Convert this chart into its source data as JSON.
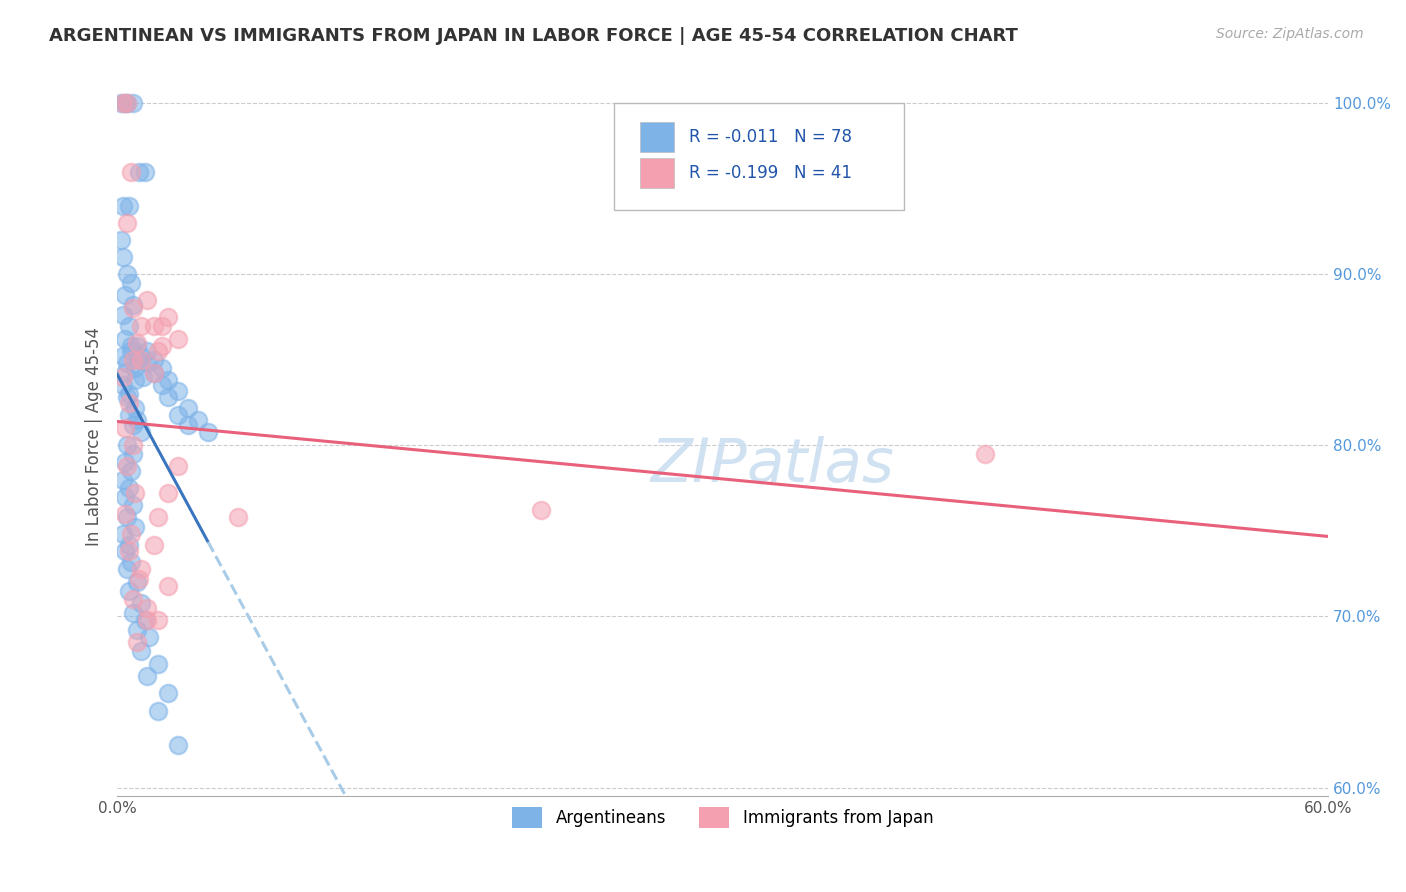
{
  "title": "ARGENTINEAN VS IMMIGRANTS FROM JAPAN IN LABOR FORCE | AGE 45-54 CORRELATION CHART",
  "source_text": "Source: ZipAtlas.com",
  "ylabel": "In Labor Force | Age 45-54",
  "xlim": [
    0.0,
    0.6
  ],
  "ylim": [
    0.595,
    1.015
  ],
  "ytick_positions": [
    0.6,
    0.7,
    0.8,
    0.9,
    1.0
  ],
  "ytick_labels": [
    "60.0%",
    "70.0%",
    "80.0%",
    "90.0%",
    "100.0%"
  ],
  "blue_scatter_color": "#7EB3E8",
  "pink_scatter_color": "#F4A0B0",
  "blue_line_color": "#3A75BF",
  "pink_line_color": "#E8607A",
  "blue_line_dash_color": "#A8CCE8",
  "watermark_color": "#C8DCF0",
  "background_color": "#FFFFFF",
  "grid_color": "#CCCCCC",
  "legend_text_color": "#2255AA",
  "ytick_color": "#5599DD",
  "arg_x": [
    0.002,
    0.004,
    0.005,
    0.008,
    0.011,
    0.014,
    0.003,
    0.006,
    0.002,
    0.003,
    0.005,
    0.007,
    0.004,
    0.008,
    0.003,
    0.006,
    0.004,
    0.007,
    0.003,
    0.005,
    0.004,
    0.009,
    0.003,
    0.006,
    0.005,
    0.009,
    0.006,
    0.01,
    0.008,
    0.012,
    0.007,
    0.011,
    0.009,
    0.013,
    0.01,
    0.015,
    0.012,
    0.018,
    0.015,
    0.022,
    0.018,
    0.025,
    0.022,
    0.03,
    0.025,
    0.035,
    0.03,
    0.04,
    0.035,
    0.045,
    0.005,
    0.008,
    0.004,
    0.007,
    0.003,
    0.006,
    0.004,
    0.008,
    0.005,
    0.009,
    0.003,
    0.006,
    0.004,
    0.007,
    0.005,
    0.01,
    0.006,
    0.012,
    0.008,
    0.014,
    0.01,
    0.016,
    0.012,
    0.02,
    0.015,
    0.025,
    0.02,
    0.03
  ],
  "arg_y": [
    1.0,
    1.0,
    1.0,
    1.0,
    0.96,
    0.96,
    0.94,
    0.94,
    0.92,
    0.91,
    0.9,
    0.895,
    0.888,
    0.882,
    0.876,
    0.87,
    0.862,
    0.858,
    0.852,
    0.848,
    0.842,
    0.838,
    0.835,
    0.83,
    0.828,
    0.822,
    0.818,
    0.815,
    0.812,
    0.808,
    0.855,
    0.85,
    0.845,
    0.84,
    0.858,
    0.855,
    0.852,
    0.85,
    0.848,
    0.845,
    0.842,
    0.838,
    0.835,
    0.832,
    0.828,
    0.822,
    0.818,
    0.815,
    0.812,
    0.808,
    0.8,
    0.795,
    0.79,
    0.785,
    0.78,
    0.775,
    0.77,
    0.765,
    0.758,
    0.752,
    0.748,
    0.742,
    0.738,
    0.732,
    0.728,
    0.72,
    0.715,
    0.708,
    0.702,
    0.698,
    0.692,
    0.688,
    0.68,
    0.672,
    0.665,
    0.655,
    0.645,
    0.625
  ],
  "jpn_x": [
    0.003,
    0.005,
    0.007,
    0.005,
    0.008,
    0.01,
    0.008,
    0.012,
    0.015,
    0.012,
    0.018,
    0.02,
    0.018,
    0.022,
    0.025,
    0.022,
    0.03,
    0.003,
    0.006,
    0.004,
    0.008,
    0.005,
    0.009,
    0.004,
    0.007,
    0.006,
    0.011,
    0.008,
    0.015,
    0.01,
    0.02,
    0.015,
    0.025,
    0.012,
    0.018,
    0.02,
    0.025,
    0.03,
    0.43,
    0.21,
    0.06
  ],
  "jpn_y": [
    1.0,
    1.0,
    0.96,
    0.93,
    0.88,
    0.86,
    0.85,
    0.87,
    0.885,
    0.85,
    0.87,
    0.855,
    0.842,
    0.87,
    0.875,
    0.858,
    0.862,
    0.84,
    0.825,
    0.81,
    0.8,
    0.788,
    0.772,
    0.76,
    0.748,
    0.738,
    0.722,
    0.71,
    0.698,
    0.685,
    0.698,
    0.705,
    0.718,
    0.728,
    0.742,
    0.758,
    0.772,
    0.788,
    0.795,
    0.762,
    0.758
  ]
}
